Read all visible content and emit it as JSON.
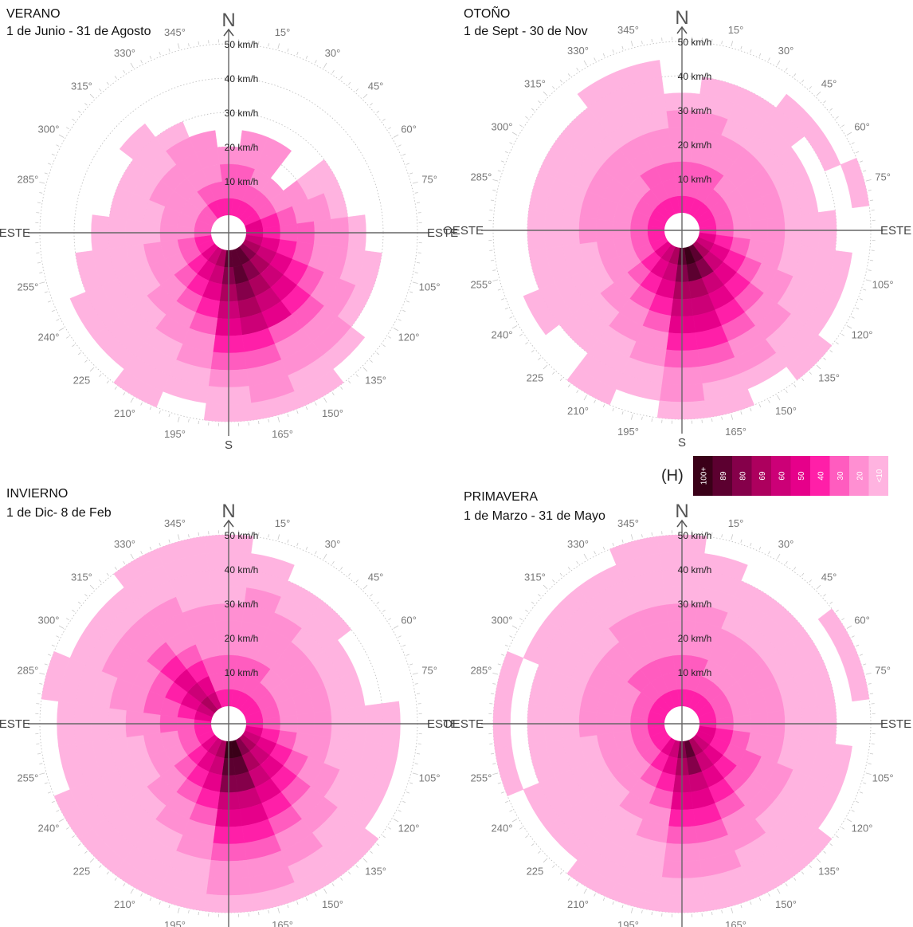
{
  "chart_data": {
    "type": "polar-heatmap",
    "panels": [
      {
        "title": "VERANO",
        "subtitle": "1 de Junio - 31 de Agosto",
        "bins": [
          [
            40,
            30,
            30,
            20,
            0,
            0,
            0,
            0,
            0,
            0
          ],
          [
            40,
            30,
            30,
            20,
            20,
            0,
            0,
            0,
            0,
            0
          ],
          [
            40,
            30,
            20,
            20,
            20,
            0,
            0,
            0,
            0,
            0
          ],
          [
            40,
            30,
            20,
            0,
            0,
            0,
            0,
            0,
            0,
            0
          ],
          [
            40,
            30,
            20,
            20,
            10,
            10,
            0,
            0,
            0,
            0
          ],
          [
            50,
            40,
            30,
            20,
            20,
            10,
            0,
            0,
            0,
            0
          ],
          [
            50,
            40,
            30,
            30,
            20,
            20,
            10,
            0,
            0,
            0
          ],
          [
            60,
            50,
            40,
            30,
            20,
            20,
            10,
            10,
            0,
            0
          ],
          [
            69,
            60,
            50,
            40,
            30,
            20,
            20,
            10,
            0,
            0
          ],
          [
            80,
            69,
            60,
            50,
            40,
            30,
            20,
            20,
            10,
            0
          ],
          [
            89,
            80,
            69,
            60,
            50,
            30,
            20,
            20,
            10,
            10
          ],
          [
            89,
            89,
            80,
            69,
            60,
            40,
            30,
            20,
            20,
            10
          ],
          [
            89,
            80,
            69,
            60,
            50,
            40,
            30,
            20,
            10,
            10
          ],
          [
            69,
            60,
            50,
            40,
            30,
            20,
            20,
            10,
            10,
            0
          ],
          [
            60,
            50,
            40,
            30,
            20,
            20,
            10,
            10,
            10,
            10
          ],
          [
            50,
            40,
            30,
            20,
            20,
            10,
            10,
            10,
            10,
            0
          ],
          [
            40,
            30,
            20,
            20,
            10,
            10,
            10,
            10,
            10,
            0
          ],
          [
            40,
            30,
            20,
            20,
            10,
            10,
            10,
            10,
            0,
            0
          ],
          [
            30,
            20,
            20,
            10,
            10,
            10,
            10,
            0,
            0,
            0
          ],
          [
            30,
            20,
            20,
            10,
            10,
            10,
            0,
            0,
            0,
            0
          ],
          [
            30,
            20,
            20,
            20,
            10,
            10,
            0,
            0,
            0,
            0
          ],
          [
            30,
            20,
            20,
            20,
            10,
            10,
            10,
            0,
            0,
            0
          ],
          [
            40,
            30,
            20,
            20,
            20,
            10,
            0,
            0,
            0,
            0
          ],
          [
            40,
            30,
            20,
            20,
            20,
            0,
            0,
            0,
            0,
            0
          ]
        ]
      },
      {
        "title": "OTOÑO",
        "subtitle": "1 de Sept - 30 de Nov",
        "bins": [
          [
            40,
            30,
            30,
            20,
            20,
            20,
            10,
            0,
            0,
            0
          ],
          [
            40,
            30,
            30,
            20,
            20,
            20,
            10,
            10,
            0,
            0
          ],
          [
            40,
            30,
            30,
            20,
            20,
            10,
            10,
            10,
            0,
            0
          ],
          [
            40,
            30,
            20,
            20,
            20,
            10,
            10,
            10,
            10,
            0
          ],
          [
            40,
            30,
            20,
            20,
            20,
            10,
            10,
            0,
            10,
            0
          ],
          [
            40,
            30,
            20,
            20,
            20,
            10,
            10,
            0,
            0,
            10
          ],
          [
            40,
            30,
            20,
            20,
            20,
            10,
            10,
            10,
            0,
            0
          ],
          [
            50,
            40,
            30,
            20,
            20,
            10,
            10,
            10,
            10,
            0
          ],
          [
            60,
            50,
            40,
            30,
            20,
            20,
            10,
            10,
            10,
            0
          ],
          [
            69,
            60,
            50,
            40,
            30,
            20,
            20,
            10,
            10,
            10
          ],
          [
            89,
            80,
            60,
            50,
            40,
            30,
            20,
            20,
            10,
            0
          ],
          [
            100,
            89,
            69,
            60,
            50,
            40,
            30,
            20,
            10,
            10
          ],
          [
            89,
            80,
            69,
            60,
            50,
            40,
            30,
            20,
            20,
            10
          ],
          [
            69,
            60,
            50,
            40,
            30,
            20,
            20,
            10,
            10,
            0
          ],
          [
            60,
            50,
            40,
            30,
            20,
            20,
            10,
            10,
            10,
            10
          ],
          [
            50,
            40,
            30,
            20,
            20,
            10,
            10,
            10,
            0,
            0
          ],
          [
            40,
            30,
            20,
            20,
            10,
            10,
            10,
            10,
            10,
            0
          ],
          [
            40,
            30,
            20,
            20,
            10,
            10,
            10,
            10,
            0,
            0
          ],
          [
            40,
            30,
            20,
            20,
            20,
            10,
            10,
            10,
            0,
            0
          ],
          [
            40,
            30,
            20,
            20,
            20,
            10,
            10,
            10,
            0,
            0
          ],
          [
            40,
            30,
            20,
            20,
            20,
            10,
            10,
            10,
            0,
            0
          ],
          [
            40,
            30,
            20,
            20,
            20,
            10,
            10,
            10,
            0,
            0
          ],
          [
            40,
            30,
            30,
            20,
            20,
            10,
            10,
            10,
            10,
            0
          ],
          [
            40,
            30,
            30,
            20,
            20,
            10,
            10,
            10,
            10,
            0
          ]
        ]
      },
      {
        "title": "INVIERNO",
        "subtitle": "1 de Dic- 8 de Feb",
        "bins": [
          [
            40,
            30,
            30,
            20,
            20,
            20,
            10,
            10,
            10,
            10
          ],
          [
            40,
            30,
            30,
            20,
            20,
            20,
            20,
            10,
            10,
            0
          ],
          [
            40,
            30,
            30,
            20,
            20,
            20,
            10,
            10,
            0,
            0
          ],
          [
            40,
            30,
            20,
            20,
            20,
            10,
            10,
            10,
            0,
            0
          ],
          [
            40,
            30,
            20,
            20,
            20,
            10,
            10,
            0,
            0,
            0
          ],
          [
            40,
            30,
            20,
            20,
            20,
            10,
            10,
            0,
            0,
            0
          ],
          [
            40,
            30,
            20,
            20,
            20,
            10,
            10,
            10,
            10,
            0
          ],
          [
            50,
            40,
            30,
            20,
            20,
            10,
            10,
            10,
            10,
            0
          ],
          [
            60,
            50,
            40,
            30,
            20,
            20,
            10,
            10,
            10,
            0
          ],
          [
            69,
            60,
            50,
            40,
            30,
            20,
            20,
            10,
            10,
            10
          ],
          [
            80,
            69,
            60,
            50,
            40,
            30,
            20,
            20,
            10,
            10
          ],
          [
            100,
            89,
            80,
            60,
            50,
            40,
            30,
            20,
            20,
            10
          ],
          [
            100,
            89,
            80,
            60,
            50,
            40,
            30,
            20,
            20,
            10
          ],
          [
            69,
            60,
            50,
            40,
            30,
            20,
            20,
            10,
            10,
            10
          ],
          [
            60,
            50,
            40,
            30,
            20,
            20,
            10,
            10,
            10,
            10
          ],
          [
            50,
            40,
            30,
            20,
            20,
            10,
            10,
            10,
            10,
            10
          ],
          [
            40,
            30,
            20,
            20,
            10,
            10,
            10,
            10,
            10,
            10
          ],
          [
            40,
            30,
            20,
            20,
            10,
            10,
            10,
            10,
            10,
            0
          ],
          [
            40,
            30,
            30,
            20,
            20,
            10,
            10,
            10,
            10,
            0
          ],
          [
            50,
            40,
            30,
            30,
            20,
            20,
            10,
            10,
            10,
            10
          ],
          [
            60,
            50,
            40,
            30,
            20,
            20,
            20,
            10,
            10,
            0
          ],
          [
            69,
            60,
            50,
            40,
            30,
            20,
            20,
            10,
            10,
            0
          ],
          [
            60,
            50,
            40,
            30,
            20,
            20,
            20,
            10,
            10,
            10
          ],
          [
            40,
            30,
            30,
            20,
            20,
            20,
            10,
            10,
            10,
            10
          ]
        ]
      },
      {
        "title": "PRIMAVERA",
        "subtitle": "1 de Marzo - 31 de Mayo",
        "bins": [
          [
            40,
            30,
            30,
            20,
            20,
            20,
            10,
            10,
            10,
            10
          ],
          [
            40,
            30,
            30,
            20,
            20,
            20,
            10,
            10,
            10,
            0
          ],
          [
            40,
            30,
            20,
            20,
            20,
            10,
            10,
            10,
            0,
            0
          ],
          [
            40,
            30,
            20,
            20,
            20,
            10,
            10,
            10,
            0,
            0
          ],
          [
            40,
            30,
            20,
            20,
            20,
            10,
            10,
            10,
            0,
            10
          ],
          [
            40,
            30,
            20,
            20,
            20,
            10,
            10,
            10,
            0,
            10
          ],
          [
            40,
            30,
            20,
            20,
            20,
            10,
            10,
            10,
            0,
            0
          ],
          [
            50,
            40,
            30,
            20,
            20,
            10,
            10,
            10,
            10,
            0
          ],
          [
            50,
            40,
            30,
            30,
            20,
            20,
            10,
            10,
            10,
            0
          ],
          [
            60,
            50,
            40,
            30,
            20,
            20,
            10,
            10,
            10,
            10
          ],
          [
            69,
            60,
            50,
            40,
            30,
            20,
            20,
            10,
            10,
            10
          ],
          [
            89,
            80,
            60,
            50,
            40,
            30,
            20,
            20,
            10,
            10
          ],
          [
            80,
            69,
            60,
            50,
            40,
            30,
            20,
            20,
            10,
            10
          ],
          [
            60,
            50,
            40,
            30,
            20,
            20,
            10,
            10,
            10,
            10
          ],
          [
            50,
            40,
            30,
            20,
            20,
            10,
            10,
            10,
            10,
            10
          ],
          [
            40,
            30,
            20,
            20,
            10,
            10,
            10,
            10,
            10,
            0
          ],
          [
            40,
            30,
            20,
            20,
            10,
            10,
            10,
            10,
            10,
            0
          ],
          [
            40,
            30,
            20,
            20,
            10,
            10,
            10,
            10,
            0,
            10
          ],
          [
            40,
            30,
            20,
            20,
            20,
            10,
            10,
            10,
            0,
            10
          ],
          [
            40,
            30,
            20,
            20,
            20,
            10,
            10,
            10,
            0,
            10
          ],
          [
            40,
            30,
            20,
            20,
            20,
            10,
            10,
            10,
            10,
            0
          ],
          [
            40,
            30,
            30,
            20,
            20,
            10,
            10,
            10,
            10,
            0
          ],
          [
            40,
            30,
            30,
            20,
            20,
            20,
            10,
            10,
            10,
            0
          ],
          [
            40,
            30,
            30,
            20,
            20,
            20,
            10,
            10,
            10,
            10
          ]
        ]
      }
    ],
    "direction_bin_deg": 15,
    "speed_bin_kmh": 5,
    "radial_labels": [
      "10 km/h",
      "20 km/h",
      "30 km/h",
      "40 km/h",
      "50 km/h"
    ],
    "angle_labels": [
      "15°",
      "30°",
      "45°",
      "60°",
      "75°",
      "105°",
      "120°",
      "135°",
      "150°",
      "165°",
      "195°",
      "210°",
      "225",
      "240°",
      "255°",
      "285°",
      "300°",
      "315°",
      "330°",
      "345°"
    ],
    "cardinal_labels": {
      "north": "N",
      "south": "S",
      "east": "ESTE",
      "west": "OESTE"
    },
    "legend": {
      "title": "(H)",
      "levels": [
        "100+",
        "89",
        "80",
        "69",
        "60",
        "50",
        "40",
        "30",
        "20",
        "<10"
      ],
      "colors": [
        "#3a0018",
        "#5c0030",
        "#85004a",
        "#ad005e",
        "#cc0077",
        "#e6008a",
        "#ff1fa8",
        "#ff5cbf",
        "#ff8fd2",
        "#ffb3e0"
      ]
    }
  }
}
